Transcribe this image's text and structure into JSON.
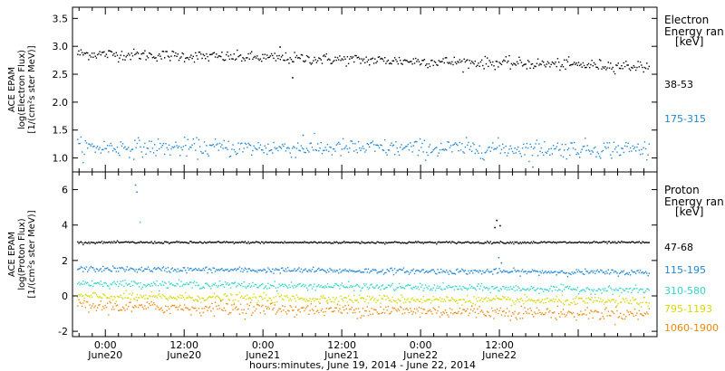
{
  "chart_data": [
    {
      "type": "scatter",
      "panel": "electron",
      "ylabel_lines": [
        "ACE EPAM",
        "log(Electron Flux)",
        "[1/(cm²s ster MeV)]"
      ],
      "ylim": [
        0.75,
        3.7
      ],
      "yticks": [
        1.0,
        1.5,
        2.0,
        2.5,
        3.0,
        3.5
      ],
      "ytick_labels": [
        "1.0",
        "1.5",
        "2.0",
        "2.5",
        "3.0",
        "3.5"
      ],
      "legend_title_lines": [
        "Electron",
        "Energy ran",
        "[keV]"
      ],
      "series": [
        {
          "name": "38-53",
          "color": "#000000",
          "x_start": -4.3,
          "x_end": 82.7,
          "y_start": 2.88,
          "y_end": 2.65,
          "noise": 0.05,
          "spikes": [
            [
              26.5,
              3.0
            ],
            [
              28.4,
              2.45
            ]
          ]
        },
        {
          "name": "175-315",
          "color": "#1f87d6",
          "x_start": -4.3,
          "x_end": 82.7,
          "y_start": 1.2,
          "y_end": 1.17,
          "noise": 0.08,
          "spikes": [
            [
              30.0,
              1.42
            ],
            [
              65.0,
              0.85
            ]
          ]
        }
      ]
    },
    {
      "type": "scatter",
      "panel": "proton",
      "ylabel_lines": [
        "ACE EPAM",
        "log(Proton Flux)",
        "[1/(cm²s ster MeV)]"
      ],
      "ylim": [
        -2.3,
        7.0
      ],
      "yticks": [
        -2,
        0,
        2,
        4,
        6
      ],
      "ytick_labels": [
        "-2",
        "0",
        "2",
        "4",
        "6"
      ],
      "legend_title_lines": [
        "Proton",
        "Energy ran",
        "[keV]"
      ],
      "series": [
        {
          "name": "47-68",
          "color": "#000000",
          "x_start": -4.3,
          "x_end": 82.7,
          "y_start": 3.05,
          "y_end": 3.05,
          "noise": 0.03,
          "spikes": [
            [
              59.5,
              4.3
            ],
            [
              60.0,
              4.0
            ],
            [
              59.2,
              3.9
            ]
          ]
        },
        {
          "name": "115-195",
          "color": "#1f87d6",
          "x_start": -4.3,
          "x_end": 82.7,
          "y_start": 1.55,
          "y_end": 1.35,
          "noise": 0.08,
          "spikes": [
            [
              4.5,
              6.3
            ],
            [
              4.7,
              5.9
            ],
            [
              59.8,
              2.2
            ],
            [
              60.2,
              1.9
            ]
          ]
        },
        {
          "name": "310-580",
          "color": "#2fd6c8",
          "x_start": -4.3,
          "x_end": 82.7,
          "y_start": 0.75,
          "y_end": 0.35,
          "noise": 0.1,
          "spikes": [
            [
              5.2,
              4.2
            ]
          ]
        },
        {
          "name": "795-1193",
          "color": "#d9d900",
          "x_start": -4.3,
          "x_end": 82.7,
          "y_start": 0.0,
          "y_end": -0.3,
          "noise": 0.12,
          "spikes": []
        },
        {
          "name": "1060-1900",
          "color": "#f0880a",
          "x_start": -4.3,
          "x_end": 82.7,
          "y_start": -0.55,
          "y_end": -1.0,
          "noise": 0.18,
          "spikes": []
        }
      ]
    }
  ],
  "x_axis": {
    "title": "hours:minutes, June 19, 2014 - June 22, 2014",
    "xlim": [
      -5,
      84
    ],
    "ticks": [
      {
        "x": 0,
        "time": "0:00",
        "date": "June20"
      },
      {
        "x": 12,
        "time": "12:00",
        "date": "June20"
      },
      {
        "x": 24,
        "time": "0:00",
        "date": "June21"
      },
      {
        "x": 36,
        "time": "12:00",
        "date": "June21"
      },
      {
        "x": 48,
        "time": "0:00",
        "date": "June22"
      },
      {
        "x": 60,
        "time": "12:00",
        "date": "June22"
      }
    ]
  }
}
